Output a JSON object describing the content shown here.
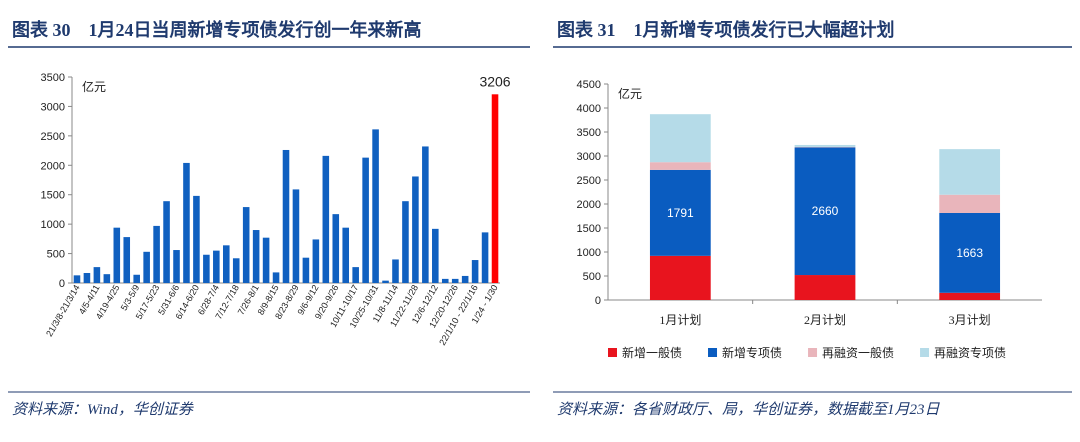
{
  "chart_data": [
    {
      "type": "bar",
      "title": "图表 30　1月24日当周新增专项债发行创一年来新高",
      "y_unit": "亿元",
      "source": "资料来源：Wind，华创证券",
      "categories": [
        "21/3/8-21/3/14",
        null,
        "4/5-4/11",
        null,
        "4/19-4/25",
        null,
        "5/3-5/9",
        null,
        "5/17-5/23",
        null,
        "5/31-6/6",
        null,
        "6/14-6/20",
        null,
        "6/28-7/4",
        null,
        "7/12-7/18",
        null,
        "7/26-8/1",
        null,
        "8/9-8/15",
        null,
        "8/23-8/29",
        null,
        "9/6-9/12",
        null,
        "9/20-9/26",
        null,
        "10/11-10/17",
        null,
        "10/25-10/31",
        null,
        "11/8-11/14",
        null,
        "11/22-11/28",
        null,
        "12/6-12/12",
        null,
        "12/20-12/26",
        null,
        "22/1/10 - 22/1/16",
        null,
        "1/24 - 1/30"
      ],
      "values": [
        130,
        170,
        270,
        150,
        940,
        780,
        140,
        530,
        970,
        1390,
        560,
        2040,
        1480,
        480,
        550,
        640,
        420,
        1290,
        900,
        770,
        180,
        2260,
        1590,
        430,
        740,
        2160,
        1170,
        940,
        270,
        2130,
        2610,
        40,
        400,
        1390,
        1810,
        2320,
        920,
        70,
        70,
        120,
        390,
        860,
        3206
      ],
      "value_labels": [
        null,
        null,
        null,
        null,
        null,
        null,
        null,
        null,
        null,
        null,
        null,
        null,
        null,
        null,
        null,
        null,
        null,
        null,
        null,
        null,
        null,
        null,
        null,
        null,
        null,
        null,
        null,
        null,
        null,
        null,
        null,
        null,
        null,
        null,
        null,
        null,
        null,
        null,
        null,
        null,
        null,
        null,
        "3206"
      ],
      "colors": [
        "#1060c0",
        "#1060c0",
        "#1060c0",
        "#1060c0",
        "#1060c0",
        "#1060c0",
        "#1060c0",
        "#1060c0",
        "#1060c0",
        "#1060c0",
        "#1060c0",
        "#1060c0",
        "#1060c0",
        "#1060c0",
        "#1060c0",
        "#1060c0",
        "#1060c0",
        "#1060c0",
        "#1060c0",
        "#1060c0",
        "#1060c0",
        "#1060c0",
        "#1060c0",
        "#1060c0",
        "#1060c0",
        "#1060c0",
        "#1060c0",
        "#1060c0",
        "#1060c0",
        "#1060c0",
        "#1060c0",
        "#1060c0",
        "#1060c0",
        "#1060c0",
        "#1060c0",
        "#1060c0",
        "#1060c0",
        "#1060c0",
        "#1060c0",
        "#1060c0",
        "#1060c0",
        "#1060c0",
        "#ff0000"
      ],
      "ylim": [
        0,
        3500
      ],
      "yticks": [
        0,
        500,
        1000,
        1500,
        2000,
        2500,
        3000,
        3500
      ]
    },
    {
      "type": "stacked_bar",
      "title": "图表 31　1月新增专项债发行已大幅超计划",
      "y_unit": "亿元",
      "source": "资料来源：各省财政厅、局，华创证券，数据截至1月23日",
      "categories": [
        "1月计划",
        "2月计划",
        "3月计划"
      ],
      "series": [
        {
          "name": "新增一般债",
          "color": "#e8141e",
          "values": [
            920,
            520,
            150
          ]
        },
        {
          "name": "新增专项债",
          "color": "#0a5cc0",
          "values": [
            1791,
            2660,
            1663
          ],
          "value_labels": [
            "1791",
            "2660",
            "1663"
          ]
        },
        {
          "name": "再融资一般债",
          "color": "#e9b5bb",
          "values": [
            160,
            10,
            380
          ]
        },
        {
          "name": "再融资专项债",
          "color": "#b5dbe8",
          "values": [
            1000,
            40,
            950
          ]
        }
      ],
      "ylim": [
        0,
        4500
      ],
      "yticks": [
        0,
        500,
        1000,
        1500,
        2000,
        2500,
        3000,
        3500,
        4000,
        4500
      ],
      "legend": "bottom"
    }
  ]
}
